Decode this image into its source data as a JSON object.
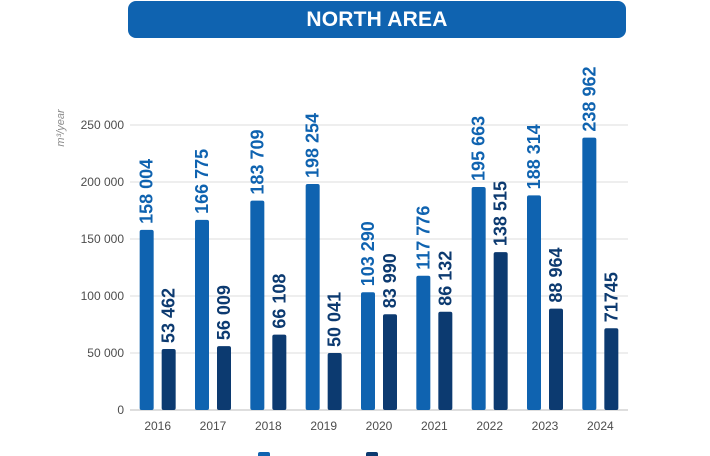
{
  "header": {
    "title": "NORTH AREA"
  },
  "colors": {
    "accent": "#0f63b0",
    "series_1": "#0f63b0",
    "series_2": "#0c3a70",
    "grid": "#dcdcdc"
  },
  "chart_data": {
    "type": "bar",
    "title": "NORTH AREA",
    "ylabel": "m³/year",
    "xlabel": "",
    "ylim": [
      0,
      250000
    ],
    "yticks": [
      0,
      50000,
      100000,
      150000,
      200000,
      250000
    ],
    "ytick_labels": [
      "0",
      "50 000",
      "100 000",
      "150 000",
      "200 000",
      "250 000"
    ],
    "grid": true,
    "legend_position": "bottom",
    "categories": [
      "2016",
      "2017",
      "2018",
      "2019",
      "2020",
      "2021",
      "2022",
      "2023",
      "2024"
    ],
    "series": [
      {
        "values": [
          158004,
          166775,
          183709,
          198254,
          103290,
          117776,
          195663,
          188314,
          238962
        ],
        "labels": [
          "158 004",
          "166 775",
          "183 709",
          "198 254",
          "103 290",
          "117 776",
          "195 663",
          "188 314",
          "238 962"
        ],
        "color": "#0f63b0"
      },
      {
        "values": [
          53462,
          56009,
          66108,
          50041,
          83990,
          86132,
          138515,
          88964,
          71745
        ],
        "labels": [
          "53 462",
          "56 009",
          "66 108",
          "50 041",
          "83 990",
          "86 132",
          "138 515",
          "88 964",
          "71745"
        ],
        "color": "#0c3a70"
      }
    ]
  }
}
